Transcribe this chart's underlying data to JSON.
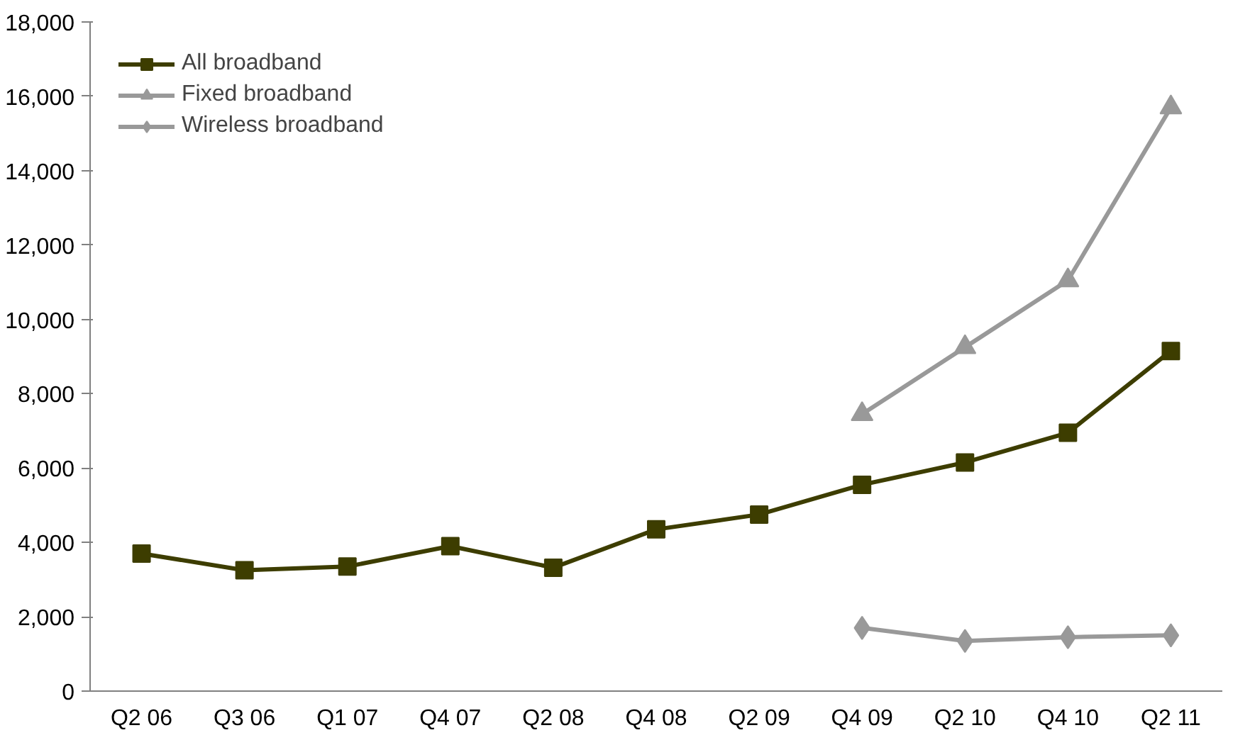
{
  "chart_data": {
    "type": "line",
    "categories": [
      "Q2 06",
      "Q3 06",
      "Q1 07",
      "Q4 07",
      "Q2 08",
      "Q4 08",
      "Q2 09",
      "Q4 09",
      "Q2 10",
      "Q4 10",
      "Q2 11"
    ],
    "series": [
      {
        "name": "All broadband",
        "color": "#3d3d00",
        "marker": "square",
        "values": [
          3700,
          3250,
          3350,
          3900,
          3320,
          4350,
          4750,
          5550,
          6150,
          6950,
          9150
        ]
      },
      {
        "name": "Fixed broadband",
        "color": "#999999",
        "marker": "triangle",
        "values": [
          null,
          null,
          null,
          null,
          null,
          null,
          null,
          7450,
          9250,
          11050,
          15700
        ]
      },
      {
        "name": "Wireless broadband",
        "color": "#999999",
        "marker": "diamond",
        "values": [
          null,
          null,
          null,
          null,
          null,
          null,
          null,
          1700,
          1350,
          1450,
          1500
        ]
      }
    ],
    "ylim": [
      0,
      18000
    ],
    "yticks": [
      {
        "value": 0,
        "label": "0"
      },
      {
        "value": 2000,
        "label": "2,000"
      },
      {
        "value": 4000,
        "label": "4,000"
      },
      {
        "value": 6000,
        "label": "6,000"
      },
      {
        "value": 8000,
        "label": "8,000"
      },
      {
        "value": 10000,
        "label": "10,000"
      },
      {
        "value": 12000,
        "label": "12,000"
      },
      {
        "value": 14000,
        "label": "14,000"
      },
      {
        "value": 16000,
        "label": "16,000"
      },
      {
        "value": 18000,
        "label": "18,000"
      }
    ],
    "grid": false,
    "legend": "top left",
    "line_style": "solid"
  }
}
